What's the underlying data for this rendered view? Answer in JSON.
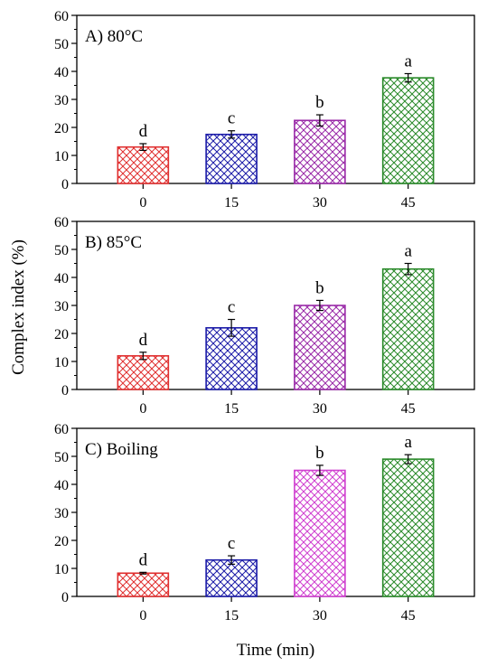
{
  "figure": {
    "shared_ylabel": "Complex index (%)",
    "shared_xlabel": "Time (min)"
  },
  "chart_data": [
    {
      "type": "bar",
      "title": "A) 80°C",
      "categories": [
        "0",
        "15",
        "30",
        "45"
      ],
      "values": [
        13,
        17.5,
        22.5,
        37.7
      ],
      "errors": [
        1.2,
        1.3,
        2.0,
        1.5
      ],
      "labels": [
        "d",
        "c",
        "b",
        "a"
      ],
      "colors": [
        "#e03030",
        "#1c1ca8",
        "#9a2aa8",
        "#2a8a2a"
      ],
      "ylim": [
        0,
        60
      ],
      "yticks": [
        "0",
        "10",
        "20",
        "30",
        "40",
        "50",
        "60"
      ]
    },
    {
      "type": "bar",
      "title": "B) 85°C",
      "categories": [
        "0",
        "15",
        "30",
        "45"
      ],
      "values": [
        12,
        22,
        30,
        43
      ],
      "errors": [
        1.3,
        3.0,
        1.8,
        2.0
      ],
      "labels": [
        "d",
        "c",
        "b",
        "a"
      ],
      "colors": [
        "#e03030",
        "#1c1ca8",
        "#9a2aa8",
        "#2a8a2a"
      ],
      "ylim": [
        0,
        60
      ],
      "yticks": [
        "0",
        "10",
        "20",
        "30",
        "40",
        "50",
        "60"
      ]
    },
    {
      "type": "bar",
      "title": "C) Boiling",
      "categories": [
        "0",
        "15",
        "30",
        "45"
      ],
      "values": [
        8.3,
        13,
        45,
        49
      ],
      "errors": [
        0.3,
        1.5,
        1.8,
        1.6
      ],
      "labels": [
        "d",
        "c",
        "b",
        "a"
      ],
      "colors": [
        "#e03030",
        "#1c1ca8",
        "#d040d0",
        "#2a8a2a"
      ],
      "ylim": [
        0,
        60
      ],
      "yticks": [
        "0",
        "10",
        "20",
        "30",
        "40",
        "50",
        "60"
      ]
    }
  ]
}
